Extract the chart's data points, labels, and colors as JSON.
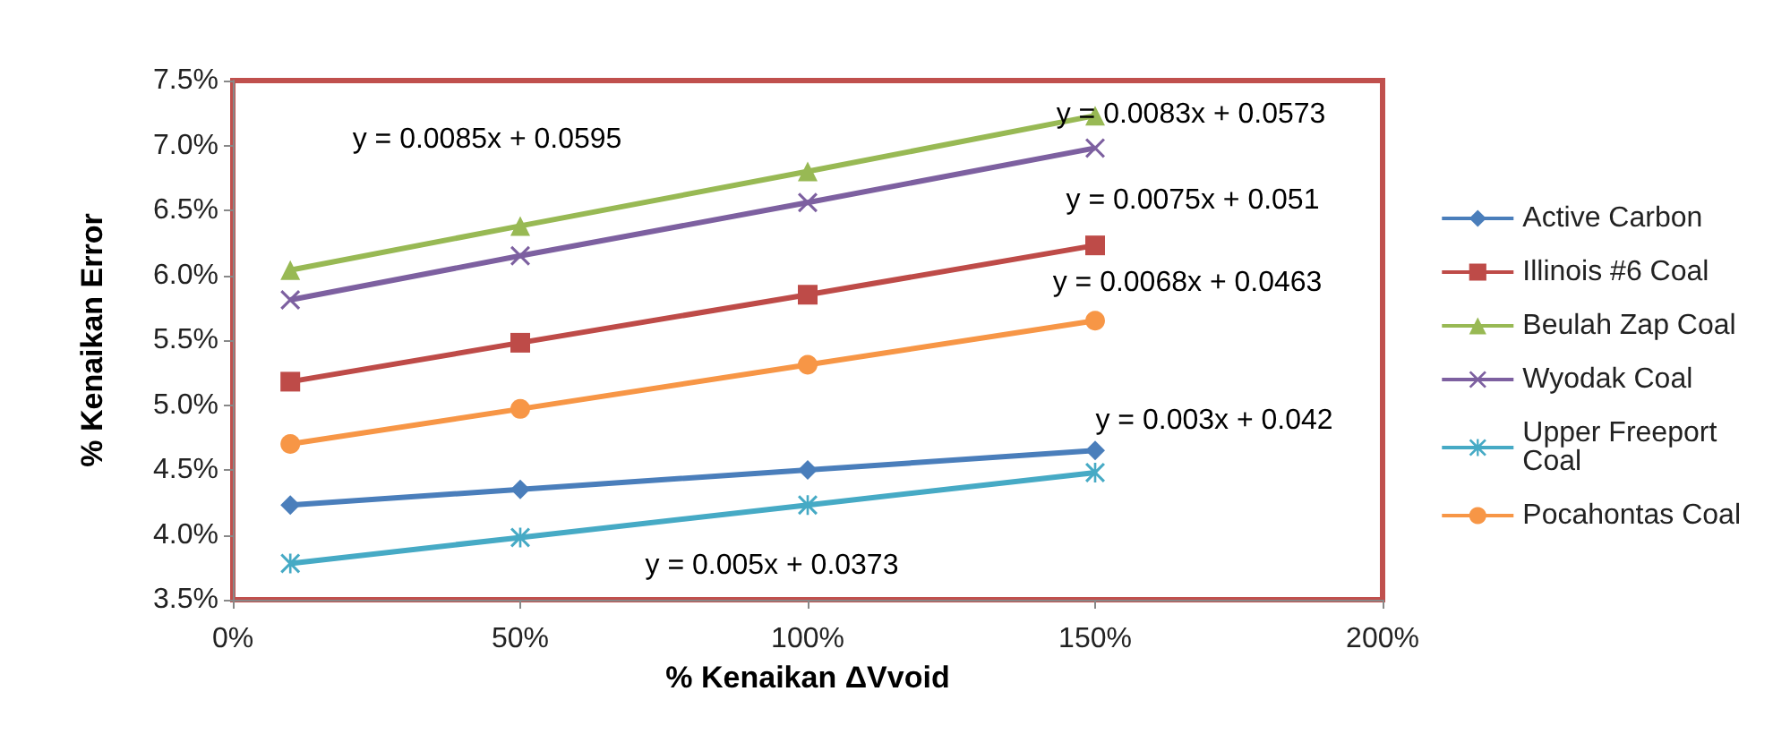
{
  "chart_data": {
    "type": "line",
    "xlabel": "% Kenaikan ΔVvoid",
    "ylabel": "% Kenaikan Error",
    "x": [
      10,
      50,
      100,
      150
    ],
    "series": [
      {
        "name": "Active Carbon",
        "color": "#4a7ebb",
        "marker": "diamond",
        "values": [
          4.23,
          4.35,
          4.5,
          4.65
        ]
      },
      {
        "name": "Illinois #6 Coal",
        "color": "#be4b48",
        "marker": "square",
        "values": [
          5.18,
          5.48,
          5.85,
          6.23
        ]
      },
      {
        "name": "Beulah Zap Coal",
        "color": "#98b954",
        "marker": "triangle",
        "values": [
          6.04,
          6.38,
          6.8,
          7.23
        ]
      },
      {
        "name": "Wyodak Coal",
        "color": "#7d60a0",
        "marker": "cross",
        "values": [
          5.81,
          6.15,
          6.56,
          6.98
        ]
      },
      {
        "name": "Upper Freeport Coal",
        "color": "#46aac5",
        "marker": "star",
        "values": [
          3.78,
          3.98,
          4.23,
          4.48
        ]
      },
      {
        "name": "Pocahontas Coal",
        "color": "#f79646",
        "marker": "circle",
        "values": [
          4.7,
          4.97,
          5.31,
          5.65
        ]
      }
    ],
    "xlim": [
      0,
      200
    ],
    "xticks": [
      {
        "value": 0,
        "label": "0%"
      },
      {
        "value": 50,
        "label": "50%"
      },
      {
        "value": 100,
        "label": "100%"
      },
      {
        "value": 150,
        "label": "150%"
      },
      {
        "value": 200,
        "label": "200%"
      }
    ],
    "ylim": [
      3.5,
      7.5
    ],
    "yticks": [
      {
        "value": 3.5,
        "label": "3.5%"
      },
      {
        "value": 4,
        "label": "4.0%"
      },
      {
        "value": 4.5,
        "label": "4.5%"
      },
      {
        "value": 5,
        "label": "5.0%"
      },
      {
        "value": 5.5,
        "label": "5.5%"
      },
      {
        "value": 6,
        "label": "6.0%"
      },
      {
        "value": 6.5,
        "label": "6.5%"
      },
      {
        "value": 7,
        "label": "7.0%"
      },
      {
        "value": 7.5,
        "label": "7.5%"
      }
    ],
    "legend": "right",
    "line_style": "solid",
    "annotations": [
      "y = 0.0085x + 0.0595",
      "y = 0.0083x + 0.0573",
      "y = 0.0075x + 0.051",
      "y = 0.0068x + 0.0463",
      "y = 0.003x + 0.042",
      "y = 0.005x + 0.0373"
    ]
  }
}
